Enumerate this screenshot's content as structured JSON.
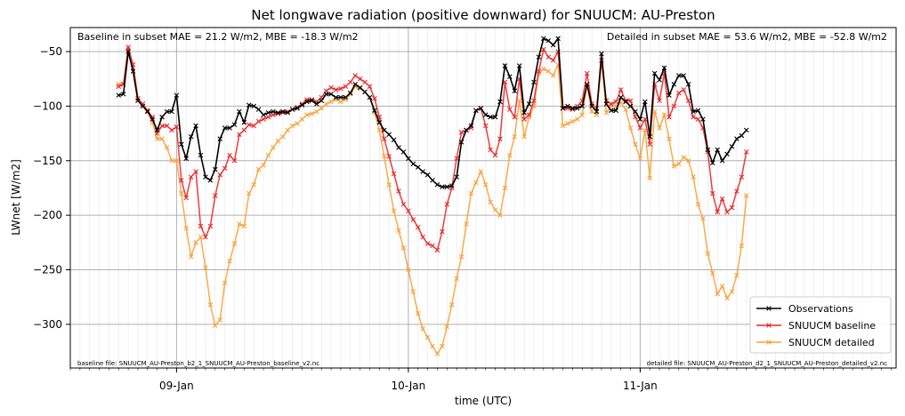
{
  "chart_data": {
    "type": "line",
    "title": "Net longwave radiation (positive downward) for SNUUCM: AU-Preston",
    "xlabel": "time (UTC)",
    "ylabel": "LWnet [W/m2]",
    "ylim": [
      -340,
      -28
    ],
    "xlim_hours": [
      -11.0,
      74.5
    ],
    "x_ticks": [
      {
        "label": "09-Jan",
        "hour": 0
      },
      {
        "label": "10-Jan",
        "hour": 24
      },
      {
        "label": "11-Jan",
        "hour": 48
      }
    ],
    "y_ticks": [
      -300,
      -250,
      -200,
      -150,
      -100,
      -50
    ],
    "annotation_left": "Baseline in subset MAE = 21.2 W/m2, MBE = -18.3 W/m2",
    "annotation_right": "Detailed in subset MAE = 53.6 W/m2, MBE = -52.8 W/m2",
    "footnote_left": "baseline file: SNUUCM_AU-Preston_b2_1_SNUUCM_AU-Preston_baseline_v2.nc",
    "footnote_right": "detailed file: SNUUCM_AU-Preston_d2_1_SNUUCM_AU-Preston_detailed_v2.nc",
    "legend_position": "lower-right",
    "grid": true,
    "x_start_hour": -6.0,
    "x_step_hours": 0.5,
    "series": [
      {
        "name": "Observations",
        "color": "#000000",
        "values": [
          -90,
          -89,
          -50,
          -68,
          -95,
          -100,
          -105,
          -112,
          -122,
          -110,
          -105,
          -105,
          -90,
          -135,
          -148,
          -128,
          -118,
          -145,
          -165,
          -168,
          -158,
          -130,
          -120,
          -120,
          -117,
          -105,
          -115,
          -99,
          -100,
          -103,
          -108,
          -106,
          -105,
          -106,
          -105,
          -106,
          -103,
          -102,
          -99,
          -96,
          -95,
          -98,
          -95,
          -89,
          -89,
          -92,
          -92,
          -92,
          -88,
          -80,
          -83,
          -87,
          -92,
          -104,
          -115,
          -122,
          -126,
          -131,
          -138,
          -142,
          -148,
          -153,
          -156,
          -160,
          -163,
          -168,
          -172,
          -174,
          -174,
          -173,
          -165,
          -133,
          -122,
          -118,
          -104,
          -102,
          -108,
          -110,
          -110,
          -96,
          -63,
          -73,
          -86,
          -63,
          -106,
          -98,
          -78,
          -55,
          -38,
          -40,
          -44,
          -38,
          -102,
          -100,
          -102,
          -102,
          -100,
          -80,
          -100,
          -105,
          -52,
          -98,
          -104,
          -104,
          -92,
          -96,
          -100,
          -105,
          -112,
          -96,
          -128,
          -70,
          -76,
          -65,
          -90,
          -80,
          -72,
          -72,
          -80,
          -105,
          -104,
          -112,
          -140,
          -152,
          -140,
          -150,
          -144,
          -137,
          -130,
          -127,
          -122
        ]
      },
      {
        "name": "SNUUCM baseline",
        "color": "#e8282a",
        "values": [
          -82,
          -80,
          -46,
          -62,
          -93,
          -98,
          -104,
          -110,
          -125,
          -118,
          -118,
          -122,
          -119,
          -168,
          -184,
          -165,
          -160,
          -210,
          -220,
          -210,
          -182,
          -163,
          -157,
          -145,
          -150,
          -126,
          -122,
          -117,
          -118,
          -114,
          -112,
          -110,
          -108,
          -107,
          -106,
          -105,
          -103,
          -101,
          -98,
          -94,
          -94,
          -96,
          -92,
          -86,
          -83,
          -85,
          -84,
          -82,
          -78,
          -72,
          -75,
          -78,
          -82,
          -93,
          -110,
          -130,
          -146,
          -162,
          -178,
          -190,
          -196,
          -204,
          -211,
          -220,
          -226,
          -228,
          -232,
          -215,
          -190,
          -175,
          -148,
          -124,
          -122,
          -120,
          -104,
          -102,
          -118,
          -140,
          -145,
          -130,
          -78,
          -103,
          -110,
          -75,
          -112,
          -108,
          -95,
          -68,
          -48,
          -55,
          -58,
          -50,
          -102,
          -102,
          -103,
          -100,
          -95,
          -70,
          -98,
          -102,
          -58,
          -95,
          -98,
          -96,
          -85,
          -95,
          -95,
          -110,
          -120,
          -112,
          -135,
          -80,
          -95,
          -70,
          -110,
          -100,
          -88,
          -85,
          -95,
          -110,
          -112,
          -120,
          -142,
          -180,
          -197,
          -185,
          -197,
          -193,
          -178,
          -165,
          -142
        ]
      },
      {
        "name": "SNUUCM detailed",
        "color": "#f6a23a",
        "values": [
          -80,
          -80,
          -48,
          -62,
          -93,
          -98,
          -105,
          -115,
          -130,
          -130,
          -138,
          -150,
          -150,
          -180,
          -212,
          -238,
          -225,
          -220,
          -248,
          -282,
          -301,
          -296,
          -262,
          -242,
          -226,
          -208,
          -210,
          -180,
          -172,
          -158,
          -154,
          -145,
          -138,
          -132,
          -128,
          -122,
          -118,
          -116,
          -112,
          -108,
          -107,
          -105,
          -102,
          -98,
          -96,
          -94,
          -96,
          -94,
          -89,
          -82,
          -84,
          -87,
          -92,
          -106,
          -122,
          -146,
          -172,
          -196,
          -214,
          -230,
          -250,
          -270,
          -290,
          -304,
          -312,
          -320,
          -327,
          -320,
          -302,
          -282,
          -258,
          -238,
          -208,
          -180,
          -170,
          -160,
          -172,
          -188,
          -195,
          -200,
          -175,
          -145,
          -128,
          -95,
          -128,
          -110,
          -100,
          -70,
          -66,
          -68,
          -72,
          -62,
          -118,
          -116,
          -114,
          -112,
          -108,
          -80,
          -105,
          -108,
          -58,
          -106,
          -100,
          -100,
          -97,
          -103,
          -120,
          -135,
          -148,
          -122,
          -166,
          -105,
          -120,
          -108,
          -130,
          -155,
          -153,
          -147,
          -150,
          -165,
          -190,
          -203,
          -235,
          -253,
          -272,
          -265,
          -276,
          -270,
          -255,
          -228,
          -182
        ]
      }
    ]
  }
}
